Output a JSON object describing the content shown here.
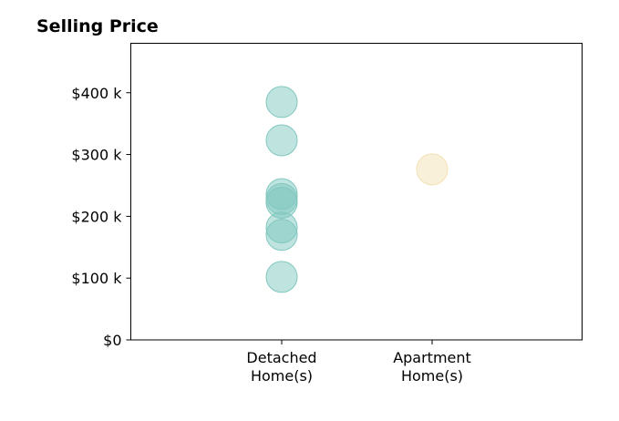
{
  "chart_data": {
    "type": "scatter",
    "title": "Selling Price",
    "xlabel": "",
    "ylabel": "",
    "categories": [
      {
        "lines": [
          "Detached",
          "Home(s)"
        ]
      },
      {
        "lines": [
          "Apartment",
          "Home(s)"
        ]
      }
    ],
    "ylim": [
      0,
      480000
    ],
    "yticks": [
      {
        "value": 0,
        "label": "$0"
      },
      {
        "value": 100000,
        "label": "$100 k"
      },
      {
        "value": 200000,
        "label": "$200 k"
      },
      {
        "value": 300000,
        "label": "$300 k"
      },
      {
        "value": 400000,
        "label": "$400 k"
      }
    ],
    "series": [
      {
        "category_index": 0,
        "color": "#80c8bf",
        "values": [
          385000,
          323000,
          236000,
          228000,
          222000,
          182000,
          170000,
          102000
        ]
      },
      {
        "category_index": 1,
        "color": "#f3e1b3",
        "values": [
          276000
        ]
      }
    ],
    "grid": false,
    "legend": "none"
  }
}
